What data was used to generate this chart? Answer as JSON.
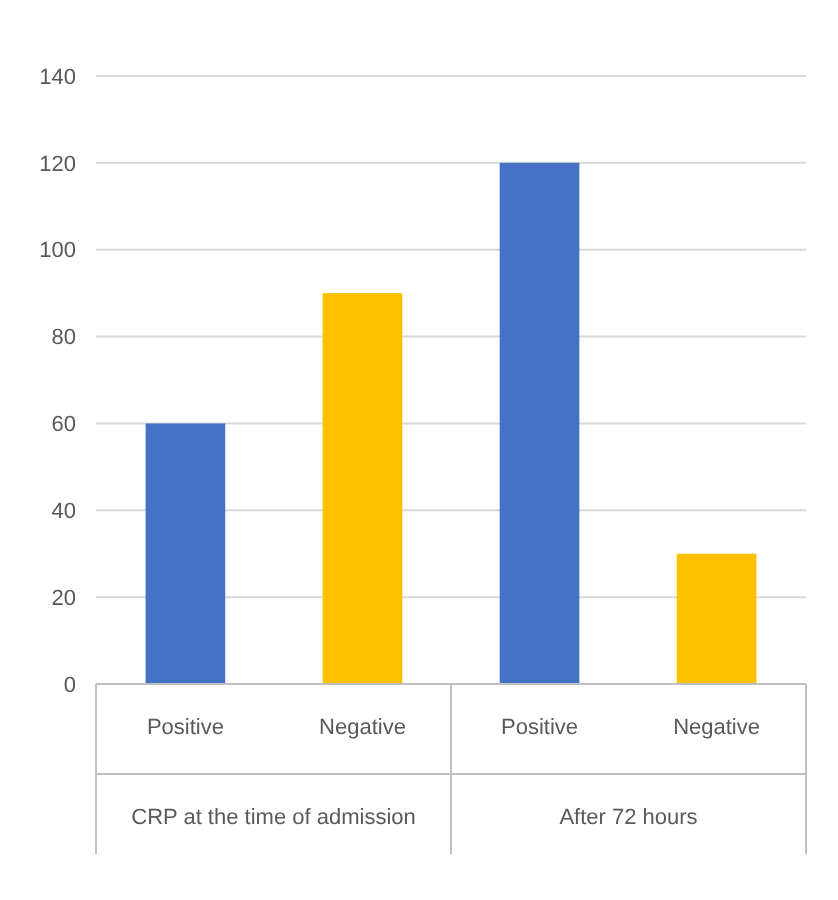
{
  "chart_data": {
    "type": "bar",
    "categories": [
      "Positive",
      "Negative",
      "Positive",
      "Negative"
    ],
    "values": [
      60,
      90,
      120,
      30
    ],
    "colors": [
      "#4472c4",
      "#ffc000",
      "#4472c4",
      "#ffc000"
    ],
    "ylim": [
      0,
      140
    ],
    "yticks": [
      0,
      20,
      40,
      60,
      80,
      100,
      120,
      140
    ],
    "grid": "y",
    "annotations": [
      "CRP at the time of admission",
      "After 72 hours"
    ]
  }
}
